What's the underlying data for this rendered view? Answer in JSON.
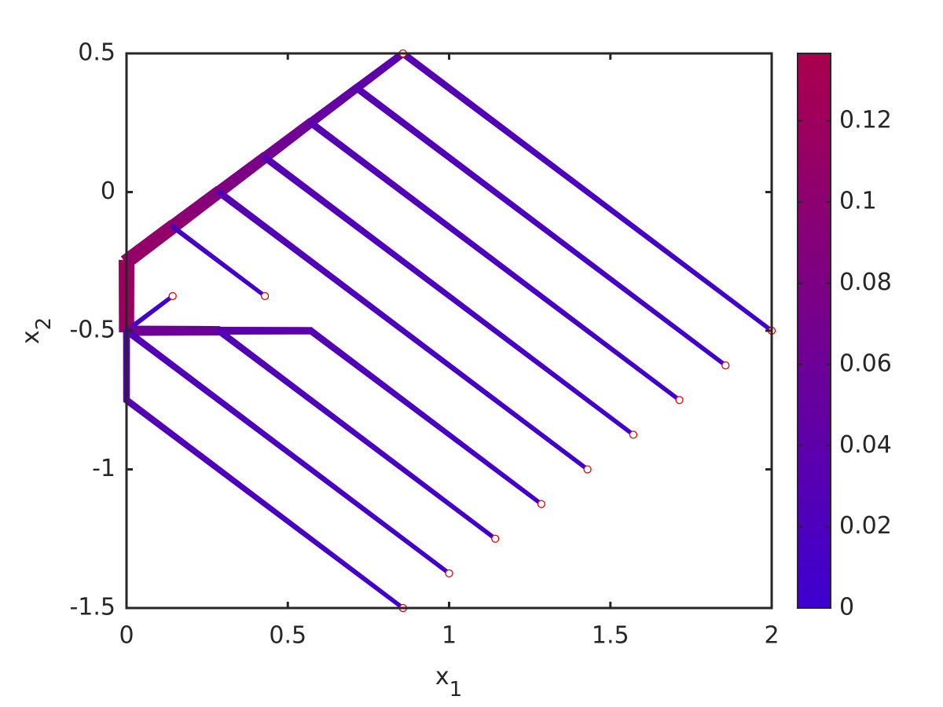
{
  "chart_data": {
    "type": "flow-network",
    "xlabel": "x",
    "xlabel_sub": "1",
    "ylabel": "x",
    "ylabel_sub": "2",
    "xlim": [
      0,
      2
    ],
    "ylim": [
      -1.5,
      0.5
    ],
    "xticks": [
      0,
      0.5,
      1,
      1.5,
      2
    ],
    "yticks": [
      -1.5,
      -1,
      -0.5,
      0,
      0.5
    ],
    "clim": [
      0,
      0.1366
    ],
    "cticks": [
      0,
      0.02,
      0.04,
      0.06,
      0.08,
      0.1,
      0.12
    ],
    "colormap": [
      "#3d00d0",
      "#aa004d"
    ],
    "edges": [
      {
        "x": [
          0,
          0
        ],
        "y": [
          -0.25,
          -0.5
        ],
        "values": [
          0.12,
          0.115
        ]
      },
      {
        "x": [
          0,
          0.143
        ],
        "y": [
          -0.25,
          -0.125
        ],
        "values": [
          0.11,
          0.105
        ]
      },
      {
        "x": [
          0.143,
          0.286
        ],
        "y": [
          -0.125,
          0
        ],
        "values": [
          0.1,
          0.09
        ]
      },
      {
        "x": [
          0.286,
          0.429
        ],
        "y": [
          0,
          0.125
        ],
        "values": [
          0.085,
          0.075
        ]
      },
      {
        "x": [
          0.429,
          0.571
        ],
        "y": [
          0.125,
          0.25
        ],
        "values": [
          0.07,
          0.06
        ]
      },
      {
        "x": [
          0.571,
          0.714
        ],
        "y": [
          0.25,
          0.375
        ],
        "values": [
          0.055,
          0.045
        ]
      },
      {
        "x": [
          0.714,
          0.857
        ],
        "y": [
          0.375,
          0.5
        ],
        "values": [
          0.045,
          0.035
        ]
      },
      {
        "x": [
          0.857,
          2
        ],
        "y": [
          0.5,
          -0.5
        ],
        "values": [
          0.032,
          0.003
        ]
      },
      {
        "x": [
          0.714,
          1.857
        ],
        "y": [
          0.375,
          -0.625
        ],
        "values": [
          0.032,
          0.003
        ]
      },
      {
        "x": [
          0.571,
          1.714
        ],
        "y": [
          0.25,
          -0.75
        ],
        "values": [
          0.032,
          0.003
        ]
      },
      {
        "x": [
          0.429,
          1.571
        ],
        "y": [
          0.125,
          -0.875
        ],
        "values": [
          0.032,
          0.003
        ]
      },
      {
        "x": [
          0.286,
          1.429
        ],
        "y": [
          0,
          -1
        ],
        "values": [
          0.032,
          0.003
        ]
      },
      {
        "x": [
          0.143,
          0.429
        ],
        "y": [
          -0.125,
          -0.375
        ],
        "values": [
          0.01,
          0.002
        ]
      },
      {
        "x": [
          0,
          0.143
        ],
        "y": [
          -0.5,
          -0.375
        ],
        "values": [
          0.01,
          0.002
        ]
      },
      {
        "x": [
          0,
          0.286
        ],
        "y": [
          -0.5,
          -0.5
        ],
        "values": [
          0.065,
          0.055
        ]
      },
      {
        "x": [
          0.286,
          0.571
        ],
        "y": [
          -0.5,
          -0.5
        ],
        "values": [
          0.04,
          0.035
        ]
      },
      {
        "x": [
          0,
          0
        ],
        "y": [
          -0.5,
          -0.75
        ],
        "values": [
          0.03,
          0.028
        ]
      },
      {
        "x": [
          0,
          0.857
        ],
        "y": [
          -0.75,
          -1.5
        ],
        "values": [
          0.03,
          0.003
        ]
      },
      {
        "x": [
          0,
          1
        ],
        "y": [
          -0.5,
          -1.375
        ],
        "values": [
          0.03,
          0.003
        ]
      },
      {
        "x": [
          0.286,
          1.143
        ],
        "y": [
          -0.5,
          -1.25
        ],
        "values": [
          0.03,
          0.003
        ]
      },
      {
        "x": [
          0.571,
          1.286
        ],
        "y": [
          -0.5,
          -1.125
        ],
        "values": [
          0.03,
          0.003
        ]
      }
    ],
    "sinks": {
      "x": [
        2,
        1.857,
        1.714,
        1.571,
        1.429,
        1.286,
        1.143,
        1,
        0.857,
        0.429,
        0.143,
        0.857
      ],
      "y": [
        -0.5,
        -0.625,
        -0.75,
        -0.875,
        -1,
        -1.125,
        -1.25,
        -1.375,
        -1.5,
        -0.375,
        -0.375,
        0.5
      ],
      "color": "#e00000"
    }
  }
}
